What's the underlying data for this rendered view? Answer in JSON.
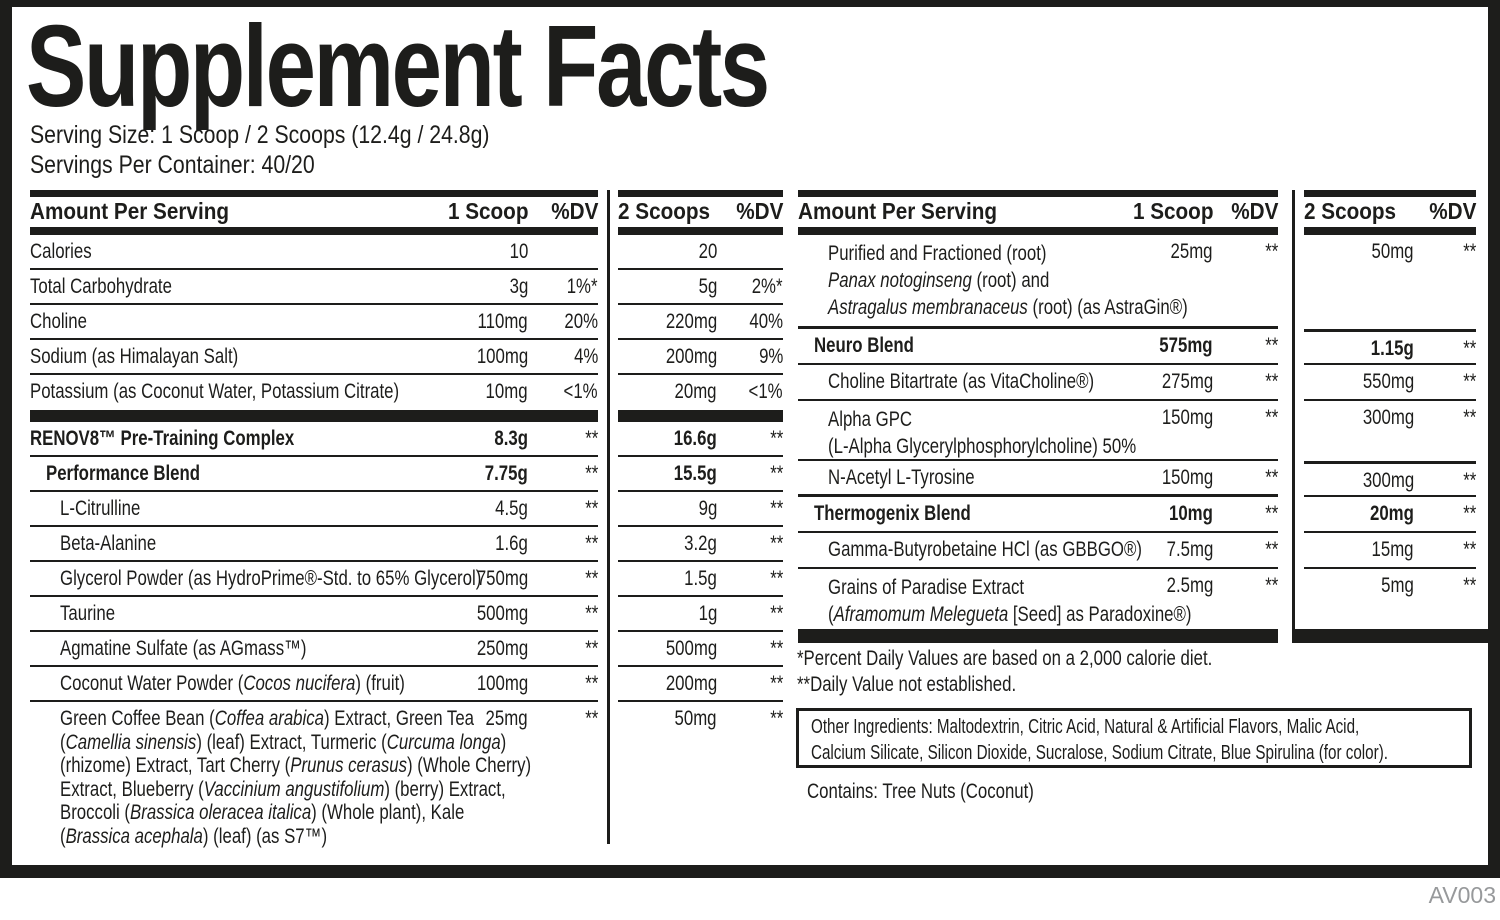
{
  "title": "Supplement Facts",
  "serving": {
    "size": "Serving Size: 1 Scoop / 2 Scoops (12.4g / 24.8g)",
    "per_container": "Servings Per Container: 40/20"
  },
  "left_table": {
    "header": {
      "amount_per_serving": "Amount Per Serving",
      "scoop1": "1 Scoop",
      "dv1": "%DV",
      "scoops2": "2 Scoops",
      "dv2": "%DV"
    },
    "rows": [
      {
        "name": "Calories",
        "a1": "10",
        "d1": "",
        "a2": "20",
        "d2": ""
      },
      {
        "name": "Total Carbohydrate",
        "a1": "3g",
        "d1": "1%*",
        "a2": "5g",
        "d2": "2%*"
      },
      {
        "name": "Choline",
        "a1": "110mg",
        "d1": "20%",
        "a2": "220mg",
        "d2": "40%"
      },
      {
        "name": "Sodium (as Himalayan Salt)",
        "a1": "100mg",
        "d1": "4%",
        "a2": "200mg",
        "d2": "9%"
      },
      {
        "name": "Potassium (as Coconut Water, Potassium Citrate)",
        "a1": "10mg",
        "d1": "<1%",
        "a2": "20mg",
        "d2": "<1%"
      },
      {
        "name": "RENOV8™ Pre-Training Complex",
        "a1": "8.3g",
        "d1": "**",
        "a2": "16.6g",
        "d2": "**"
      },
      {
        "name": "Performance Blend",
        "a1": "7.75g",
        "d1": "**",
        "a2": "15.5g",
        "d2": "**"
      },
      {
        "name": "L-Citrulline",
        "a1": "4.5g",
        "d1": "**",
        "a2": "9g",
        "d2": "**"
      },
      {
        "name": "Beta-Alanine",
        "a1": "1.6g",
        "d1": "**",
        "a2": "3.2g",
        "d2": "**"
      },
      {
        "name": "Glycerol Powder (as HydroPrime®-Std. to 65% Glycerol)",
        "a1": "750mg",
        "d1": "**",
        "a2": "1.5g",
        "d2": "**"
      },
      {
        "name": "Taurine",
        "a1": "500mg",
        "d1": "**",
        "a2": "1g",
        "d2": "**"
      },
      {
        "name": "Agmatine Sulfate (as AGmass™)",
        "a1": "250mg",
        "d1": "**",
        "a2": "500mg",
        "d2": "**"
      },
      {
        "name": "Coconut Water Powder (_Cocos nucifera_) (fruit)",
        "a1": "100mg",
        "d1": "**",
        "a2": "200mg",
        "d2": "**"
      },
      {
        "lines": [
          "Green Coffee Bean (_Coffea arabica_) Extract, Green Tea",
          "(_Camellia sinensis_) (leaf) Extract, Turmeric (_Curcuma longa_)",
          "(rhizome) Extract, Tart Cherry (_Prunus cerasus_) (Whole Cherry)",
          "Extract, Blueberry (_Vaccinium angustifolium_) (berry) Extract,",
          "Broccoli (_Brassica oleracea italica_) (Whole plant), Kale",
          "(_Brassica acephala_) (leaf) (as S7™)"
        ],
        "a1": "25mg",
        "d1": "**",
        "a2": "50mg",
        "d2": "**"
      }
    ]
  },
  "right_table": {
    "header": {
      "amount_per_serving": "Amount Per Serving",
      "scoop1": "1 Scoop",
      "dv1": "%DV",
      "scoops2": "2 Scoops",
      "dv2": "%DV"
    },
    "rows": [
      {
        "lines": [
          "Purified and Fractioned (root)",
          "_Panax notoginseng_ (root) and",
          "_Astragalus membranaceus_ (root) (as AstraGin®)"
        ],
        "a1": "25mg",
        "d1": "**",
        "a2": "50mg",
        "d2": "**"
      },
      {
        "name": "Neuro Blend",
        "a1": "575mg",
        "d1": "**",
        "a2": "1.15g",
        "d2": "**"
      },
      {
        "name": "Choline Bitartrate (as VitaCholine®)",
        "a1": "275mg",
        "d1": "**",
        "a2": "550mg",
        "d2": "**"
      },
      {
        "lines": [
          "Alpha GPC",
          "(L-Alpha Glycerylphosphorylcholine) 50%"
        ],
        "a1": "150mg",
        "d1": "**",
        "a2": "300mg",
        "d2": "**"
      },
      {
        "name": "N-Acetyl L-Tyrosine",
        "a1": "150mg",
        "d1": "**",
        "a2": "300mg",
        "d2": "**"
      },
      {
        "name": "Thermogenix Blend",
        "a1": "10mg",
        "d1": "**",
        "a2": "20mg",
        "d2": "**"
      },
      {
        "name": "Gamma-Butyrobetaine HCl (as GBBGO®)",
        "a1": "7.5mg",
        "d1": "**",
        "a2": "15mg",
        "d2": "**"
      },
      {
        "lines": [
          "Grains of Paradise Extract",
          "(_Aframomum Melegueta_ [Seed] as Paradoxine®)"
        ],
        "a1": "2.5mg",
        "d1": "**",
        "a2": "5mg",
        "d2": "**"
      }
    ]
  },
  "footnotes": {
    "percent": "*Percent Daily Values are based on a 2,000 calorie diet.",
    "daily_value": "**Daily Value not established."
  },
  "other_ingredients": {
    "line1": "Other Ingredients: Maltodextrin, Citric Acid, Natural & Artificial Flavors, Malic Acid,",
    "line2": "Calcium Silicate, Silicon Dioxide, Sucralose, Sodium Citrate, Blue Spirulina (for color)."
  },
  "contains": "Contains: Tree Nuts (Coconut)",
  "code": "AV003",
  "colors": {
    "text": "#1d1d1b",
    "muted": "#97999b",
    "background": "#ffffff"
  }
}
